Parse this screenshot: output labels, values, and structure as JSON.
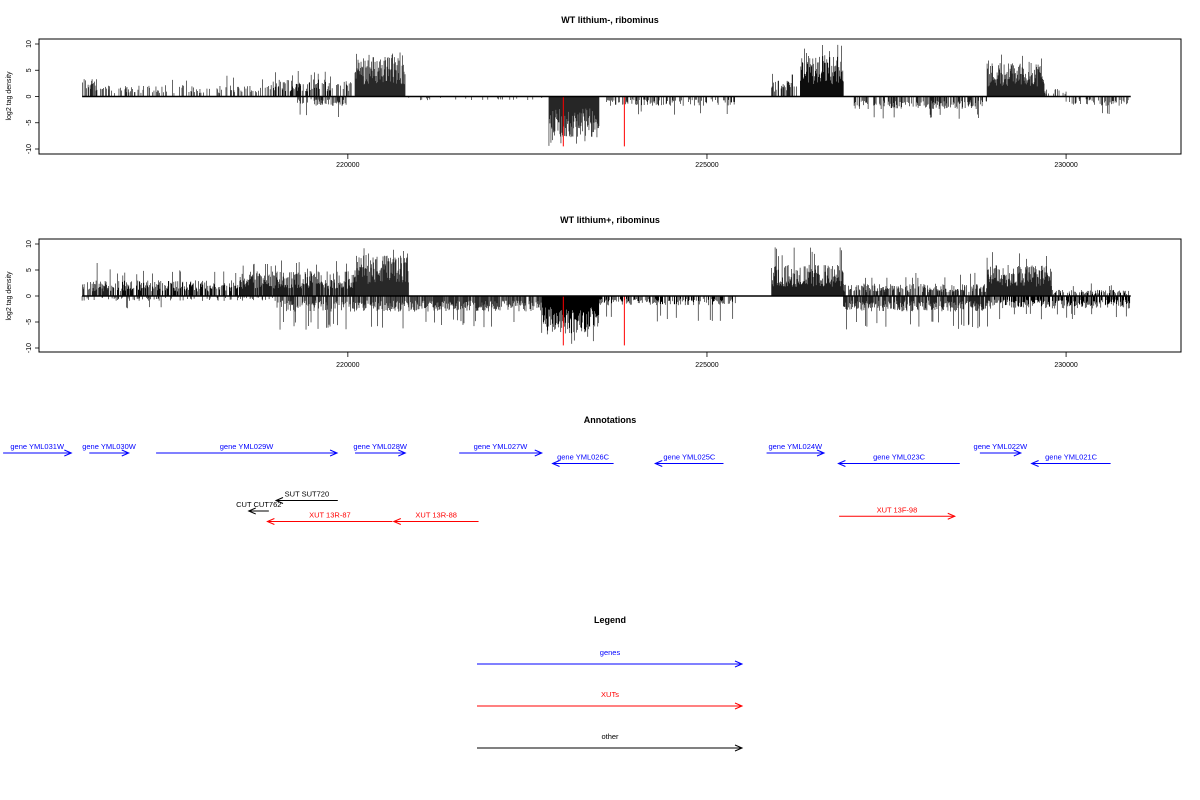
{
  "colors": {
    "gene": "#0000ff",
    "xut": "#ff0000",
    "other": "#000000",
    "signal": "#000000",
    "peak": "#ff0000"
  },
  "chart_data": [
    {
      "type": "bar",
      "title": "WT lithium-, ribominus",
      "ylabel": "log2 tag density",
      "xlim": [
        215700,
        231600
      ],
      "ylim": [
        -10,
        10
      ],
      "xticks": [
        220000,
        225000,
        230000
      ],
      "xtick_labels": [
        "220000",
        "225000",
        "230000"
      ],
      "yticks": [
        -10,
        -5,
        0,
        5,
        10
      ],
      "ytick_labels": [
        "-10",
        "-5",
        "0",
        "5",
        "10"
      ],
      "grid": false,
      "x_start": 216300,
      "x_end": 230900,
      "forward_segments": [
        {
          "x": [
            216300,
            216500
          ],
          "level": 3.0,
          "max": 4.8,
          "density": 0.55
        },
        {
          "x": [
            216500,
            218800
          ],
          "level": 1.8,
          "max": 4.0,
          "density": 0.35
        },
        {
          "x": [
            218800,
            220050
          ],
          "level": 2.8,
          "max": 5.0,
          "density": 0.55
        },
        {
          "x": [
            220100,
            220800
          ],
          "level": 6.5,
          "max": 9.0,
          "density": 1.0
        },
        {
          "x": [
            225900,
            226250
          ],
          "level": 2.5,
          "max": 4.5,
          "density": 0.6
        },
        {
          "x": [
            226300,
            226900
          ],
          "level": 6.5,
          "max": 10.0,
          "density": 1.0
        },
        {
          "x": [
            228900,
            229700
          ],
          "level": 5.5,
          "max": 8.0,
          "density": 1.0
        },
        {
          "x": [
            229700,
            230000
          ],
          "level": 1.2,
          "max": 2.5,
          "density": 0.35
        }
      ],
      "reverse_segments": [
        {
          "x": [
            219300,
            220000
          ],
          "level": -1.5,
          "max": -4.0,
          "density": 0.5
        },
        {
          "x": [
            220800,
            222800
          ],
          "level": -0.6,
          "max": -2.0,
          "density": 0.1
        },
        {
          "x": [
            222800,
            223500
          ],
          "level": -6.5,
          "max": -9.5,
          "density": 1.0
        },
        {
          "x": [
            223600,
            224000
          ],
          "level": -1.5,
          "max": -3.5,
          "density": 0.4
        },
        {
          "x": [
            224000,
            225400
          ],
          "level": -1.5,
          "max": -3.5,
          "density": 0.3
        },
        {
          "x": [
            227000,
            228900
          ],
          "level": -2.0,
          "max": -4.5,
          "density": 0.5
        },
        {
          "x": [
            230000,
            230900
          ],
          "level": -1.5,
          "max": -4.0,
          "density": 0.4
        }
      ],
      "peaks": [
        {
          "x": 223000,
          "y": -9.5
        },
        {
          "x": 223850,
          "y": -9.5
        }
      ]
    },
    {
      "type": "bar",
      "title": "WT lithium+, ribominus",
      "ylabel": "log2 tag density",
      "xlim": [
        215700,
        231600
      ],
      "ylim": [
        -10,
        10
      ],
      "xticks": [
        220000,
        225000,
        230000
      ],
      "xtick_labels": [
        "220000",
        "225000",
        "230000"
      ],
      "yticks": [
        -10,
        -5,
        0,
        5,
        10
      ],
      "ytick_labels": [
        "-10",
        "-5",
        "0",
        "5",
        "10"
      ],
      "grid": false,
      "x_start": 216300,
      "x_end": 230900,
      "forward_segments": [
        {
          "x": [
            216300,
            216700
          ],
          "level": 2.5,
          "max": 6.5,
          "density": 0.7
        },
        {
          "x": [
            216700,
            218500
          ],
          "level": 2.5,
          "max": 5.0,
          "density": 0.7
        },
        {
          "x": [
            218500,
            220100
          ],
          "level": 4.0,
          "max": 7.0,
          "density": 0.9
        },
        {
          "x": [
            220100,
            220850
          ],
          "level": 6.5,
          "max": 9.5,
          "density": 1.0
        },
        {
          "x": [
            225900,
            226900
          ],
          "level": 5.0,
          "max": 9.5,
          "density": 1.0
        },
        {
          "x": [
            226900,
            228900
          ],
          "level": 2.0,
          "max": 4.5,
          "density": 0.6
        },
        {
          "x": [
            228900,
            229800
          ],
          "level": 5.0,
          "max": 8.5,
          "density": 1.0
        },
        {
          "x": [
            229800,
            230900
          ],
          "level": 1.0,
          "max": 2.5,
          "density": 0.5
        }
      ],
      "reverse_segments": [
        {
          "x": [
            216300,
            219000
          ],
          "level": -0.8,
          "max": -2.5,
          "density": 0.2
        },
        {
          "x": [
            219000,
            220900
          ],
          "level": -2.5,
          "max": -6.5,
          "density": 0.6
        },
        {
          "x": [
            220900,
            222700
          ],
          "level": -2.5,
          "max": -6.0,
          "density": 0.8
        },
        {
          "x": [
            222700,
            223500
          ],
          "level": -6.0,
          "max": -9.5,
          "density": 1.0
        },
        {
          "x": [
            223500,
            225400
          ],
          "level": -1.5,
          "max": -5.0,
          "density": 0.5
        },
        {
          "x": [
            226900,
            229000
          ],
          "level": -2.5,
          "max": -6.5,
          "density": 0.8
        },
        {
          "x": [
            229000,
            230900
          ],
          "level": -2.0,
          "max": -4.5,
          "density": 0.7
        }
      ],
      "peaks": [
        {
          "x": 223000,
          "y": -9.5
        },
        {
          "x": 223850,
          "y": -9.5
        }
      ]
    }
  ],
  "annotations": {
    "title": "Annotations",
    "features": [
      {
        "label": "gene YML031W",
        "category": "gene",
        "strand": "+",
        "start": 215200,
        "end": 216150,
        "row": 0
      },
      {
        "label": "gene YML030W",
        "category": "gene",
        "strand": "+",
        "start": 216400,
        "end": 216950,
        "row": 0
      },
      {
        "label": "gene YML029W",
        "category": "gene",
        "strand": "+",
        "start": 217330,
        "end": 219850,
        "row": 0
      },
      {
        "label": "gene YML028W",
        "category": "gene",
        "strand": "+",
        "start": 220100,
        "end": 220800,
        "row": 0
      },
      {
        "label": "gene YML027W",
        "category": "gene",
        "strand": "+",
        "start": 221550,
        "end": 222700,
        "row": 0
      },
      {
        "label": "gene YML026C",
        "category": "gene",
        "strand": "-",
        "start": 222850,
        "end": 223700,
        "row": 1
      },
      {
        "label": "gene YML025C",
        "category": "gene",
        "strand": "-",
        "start": 224280,
        "end": 225230,
        "row": 1
      },
      {
        "label": "gene YML024W",
        "category": "gene",
        "strand": "+",
        "start": 225830,
        "end": 226630,
        "row": 0
      },
      {
        "label": "gene YML023C",
        "category": "gene",
        "strand": "-",
        "start": 226830,
        "end": 228520,
        "row": 1
      },
      {
        "label": "gene YML022W",
        "category": "gene",
        "strand": "+",
        "start": 228800,
        "end": 229370,
        "row": 0
      },
      {
        "label": "gene YML021C",
        "category": "gene",
        "strand": "-",
        "start": 229520,
        "end": 230620,
        "row": 1
      },
      {
        "label": "SUT SUT720",
        "category": "other",
        "strand": "-",
        "start": 219000,
        "end": 219860,
        "row": 3
      },
      {
        "label": "CUT CUT762",
        "category": "other",
        "strand": "-",
        "start": 218620,
        "end": 218900,
        "row": 4
      },
      {
        "label": "XUT 13R-87",
        "category": "xut",
        "strand": "-",
        "start": 218880,
        "end": 220620,
        "row": 5
      },
      {
        "label": "XUT 13R-88",
        "category": "xut",
        "strand": "-",
        "start": 220640,
        "end": 221820,
        "row": 5
      },
      {
        "label": "XUT 13F-98",
        "category": "xut",
        "strand": "+",
        "start": 226840,
        "end": 228450,
        "row": 4.5
      }
    ]
  },
  "legend": {
    "title": "Legend",
    "items": [
      {
        "label": "genes",
        "category": "gene"
      },
      {
        "label": "XUTs",
        "category": "xut"
      },
      {
        "label": "other",
        "category": "other"
      }
    ]
  }
}
